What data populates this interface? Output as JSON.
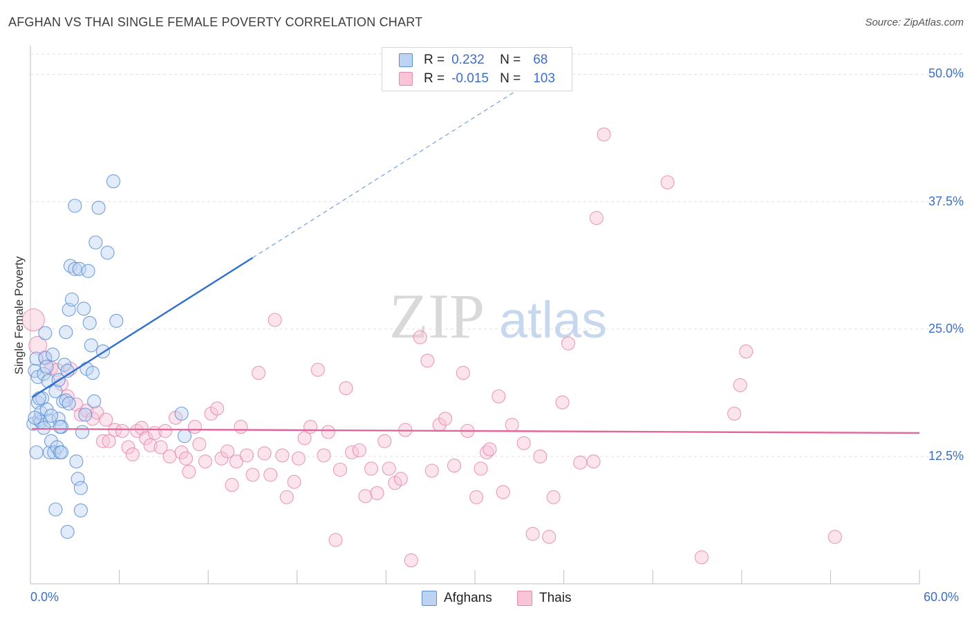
{
  "title": "AFGHAN VS THAI SINGLE FEMALE POVERTY CORRELATION CHART",
  "source": "Source: ZipAtlas.com",
  "watermark": {
    "zip": "ZIP",
    "atlas": "atlas"
  },
  "legend": {
    "r_label": "R =",
    "n_label": "N =",
    "rows": [
      {
        "r": "0.232",
        "n": "68",
        "color": "#5b8fd6",
        "fill": "#bcd3f2"
      },
      {
        "r": "-0.015",
        "n": "103",
        "color": "#e58ab0",
        "fill": "#f8c4d6"
      }
    ]
  },
  "bottom_legend": [
    "Afghans",
    "Thais"
  ],
  "chart_data": {
    "type": "scatter",
    "title": "AFGHAN VS THAI SINGLE FEMALE POVERTY CORRELATION CHART",
    "xlabel": "",
    "ylabel": "Single Female Poverty",
    "xlim": [
      0,
      60
    ],
    "ylim": [
      0,
      52
    ],
    "x_ticks": [
      "0.0%",
      "60.0%"
    ],
    "y_ticks": [
      {
        "value": 12.5,
        "label": "12.5%"
      },
      {
        "value": 25.0,
        "label": "25.0%"
      },
      {
        "value": 37.5,
        "label": "37.5%"
      },
      {
        "value": 50.0,
        "label": "50.0%"
      }
    ],
    "grid": true,
    "series": [
      {
        "name": "Afghans",
        "color": "#5b8fd6",
        "fill": "#bcd3f2",
        "trend": {
          "x0": 0.1,
          "y0": 18.3,
          "x1": 15.0,
          "y1": 32.0,
          "dash_to_x": 34.0,
          "dash_to_y": 49.5
        },
        "points": [
          [
            0.2,
            15.7
          ],
          [
            0.3,
            20.9
          ],
          [
            0.4,
            22.1
          ],
          [
            0.5,
            20.3
          ],
          [
            0.5,
            17.8
          ],
          [
            0.6,
            16.1
          ],
          [
            0.7,
            15.9
          ],
          [
            0.7,
            16.8
          ],
          [
            0.8,
            18.2
          ],
          [
            0.9,
            20.6
          ],
          [
            1.0,
            22.2
          ],
          [
            1.0,
            24.6
          ],
          [
            1.1,
            17.1
          ],
          [
            1.2,
            19.9
          ],
          [
            1.3,
            16.0
          ],
          [
            1.3,
            12.9
          ],
          [
            1.4,
            14.0
          ],
          [
            1.5,
            22.5
          ],
          [
            1.6,
            12.9
          ],
          [
            1.7,
            18.9
          ],
          [
            1.8,
            13.4
          ],
          [
            1.9,
            16.2
          ],
          [
            2.0,
            12.9
          ],
          [
            2.1,
            15.4
          ],
          [
            2.2,
            17.9
          ],
          [
            2.3,
            21.5
          ],
          [
            2.4,
            24.7
          ],
          [
            2.4,
            18.0
          ],
          [
            2.5,
            20.9
          ],
          [
            2.6,
            26.9
          ],
          [
            2.7,
            31.2
          ],
          [
            2.8,
            27.9
          ],
          [
            3.0,
            30.9
          ],
          [
            3.1,
            12.0
          ],
          [
            3.2,
            10.3
          ],
          [
            3.4,
            9.4
          ],
          [
            3.5,
            14.9
          ],
          [
            3.6,
            27.0
          ],
          [
            3.7,
            16.6
          ],
          [
            3.8,
            21.1
          ],
          [
            4.0,
            25.6
          ],
          [
            4.1,
            23.4
          ],
          [
            4.2,
            20.7
          ],
          [
            4.3,
            17.9
          ],
          [
            4.4,
            33.5
          ],
          [
            4.6,
            36.9
          ],
          [
            4.9,
            22.8
          ],
          [
            5.2,
            32.5
          ],
          [
            5.6,
            39.5
          ],
          [
            5.8,
            25.8
          ],
          [
            2.5,
            5.1
          ],
          [
            3.4,
            7.2
          ],
          [
            1.7,
            7.3
          ],
          [
            0.4,
            12.9
          ],
          [
            1.9,
            20.0
          ],
          [
            3.0,
            37.1
          ],
          [
            2.6,
            17.7
          ],
          [
            0.9,
            15.3
          ],
          [
            1.4,
            16.5
          ],
          [
            2.1,
            12.9
          ],
          [
            10.2,
            16.7
          ],
          [
            10.4,
            14.5
          ],
          [
            3.3,
            30.9
          ],
          [
            0.3,
            16.3
          ],
          [
            0.6,
            18.2
          ],
          [
            1.1,
            21.3
          ],
          [
            2.0,
            15.4
          ],
          [
            3.9,
            30.7
          ]
        ]
      },
      {
        "name": "Thais",
        "color": "#e58ab0",
        "fill": "#f8c4d6",
        "trend": {
          "x0": 0.1,
          "y0": 15.2,
          "x1": 60.0,
          "y1": 14.8
        },
        "points": [
          [
            0.2,
            25.9
          ],
          [
            0.5,
            23.4
          ],
          [
            1.0,
            22.1
          ],
          [
            1.4,
            21.2
          ],
          [
            1.8,
            21.0
          ],
          [
            2.1,
            19.6
          ],
          [
            2.5,
            18.4
          ],
          [
            3.1,
            17.6
          ],
          [
            3.4,
            16.6
          ],
          [
            3.8,
            17.0
          ],
          [
            4.2,
            16.2
          ],
          [
            4.5,
            16.8
          ],
          [
            4.9,
            14.0
          ],
          [
            5.1,
            16.1
          ],
          [
            5.3,
            14.0
          ],
          [
            5.7,
            15.1
          ],
          [
            6.2,
            15.0
          ],
          [
            6.6,
            13.4
          ],
          [
            6.9,
            12.7
          ],
          [
            7.2,
            15.0
          ],
          [
            7.5,
            15.3
          ],
          [
            7.8,
            14.3
          ],
          [
            8.1,
            13.6
          ],
          [
            8.4,
            14.8
          ],
          [
            8.8,
            13.4
          ],
          [
            9.1,
            15.0
          ],
          [
            9.4,
            12.5
          ],
          [
            9.8,
            16.3
          ],
          [
            10.2,
            12.9
          ],
          [
            10.5,
            12.3
          ],
          [
            10.7,
            11.0
          ],
          [
            11.1,
            15.4
          ],
          [
            11.4,
            13.7
          ],
          [
            11.8,
            12.0
          ],
          [
            12.2,
            16.7
          ],
          [
            12.6,
            17.2
          ],
          [
            12.9,
            12.3
          ],
          [
            13.3,
            13.0
          ],
          [
            13.6,
            9.7
          ],
          [
            13.9,
            12.0
          ],
          [
            14.2,
            15.4
          ],
          [
            14.6,
            12.6
          ],
          [
            15.0,
            10.7
          ],
          [
            15.4,
            20.7
          ],
          [
            15.8,
            12.8
          ],
          [
            16.2,
            10.7
          ],
          [
            16.5,
            25.9
          ],
          [
            17.0,
            12.6
          ],
          [
            17.3,
            8.5
          ],
          [
            17.8,
            10.0
          ],
          [
            18.1,
            12.3
          ],
          [
            18.5,
            14.3
          ],
          [
            18.9,
            15.4
          ],
          [
            19.4,
            21.0
          ],
          [
            19.8,
            12.6
          ],
          [
            20.1,
            14.9
          ],
          [
            20.6,
            4.3
          ],
          [
            20.9,
            11.2
          ],
          [
            21.3,
            19.2
          ],
          [
            21.7,
            12.9
          ],
          [
            22.2,
            13.1
          ],
          [
            22.6,
            8.6
          ],
          [
            23.0,
            11.3
          ],
          [
            23.4,
            8.9
          ],
          [
            23.9,
            14.0
          ],
          [
            24.2,
            11.3
          ],
          [
            24.6,
            9.9
          ],
          [
            25.0,
            10.3
          ],
          [
            25.3,
            15.1
          ],
          [
            25.7,
            2.3
          ],
          [
            26.3,
            24.2
          ],
          [
            26.8,
            21.9
          ],
          [
            27.1,
            11.1
          ],
          [
            27.6,
            15.6
          ],
          [
            28.0,
            16.2
          ],
          [
            28.6,
            11.6
          ],
          [
            29.2,
            20.7
          ],
          [
            29.5,
            15.0
          ],
          [
            30.1,
            8.5
          ],
          [
            30.4,
            11.3
          ],
          [
            30.8,
            12.9
          ],
          [
            31.0,
            13.2
          ],
          [
            31.6,
            18.4
          ],
          [
            31.9,
            9.0
          ],
          [
            32.5,
            15.6
          ],
          [
            33.3,
            13.8
          ],
          [
            33.9,
            4.9
          ],
          [
            34.4,
            12.5
          ],
          [
            35.0,
            4.6
          ],
          [
            35.3,
            8.5
          ],
          [
            35.9,
            17.8
          ],
          [
            36.3,
            23.6
          ],
          [
            37.1,
            11.9
          ],
          [
            38.0,
            12.0
          ],
          [
            38.2,
            35.9
          ],
          [
            38.7,
            44.1
          ],
          [
            43.0,
            39.4
          ],
          [
            45.3,
            2.6
          ],
          [
            47.5,
            16.7
          ],
          [
            47.9,
            19.5
          ],
          [
            48.3,
            22.8
          ],
          [
            54.3,
            4.6
          ],
          [
            2.7,
            21.1
          ]
        ]
      }
    ]
  }
}
